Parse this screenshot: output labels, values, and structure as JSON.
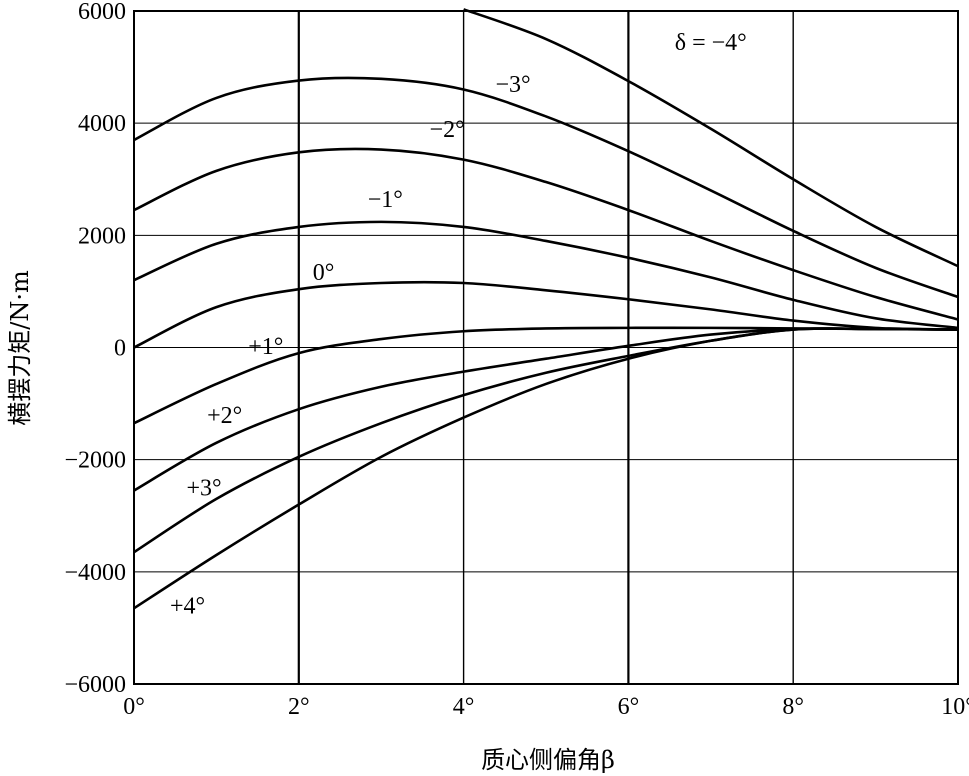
{
  "chart_data": {
    "type": "line",
    "title": "",
    "xlabel": "质心侧偏角β",
    "ylabel": "横摆力矩/N·m",
    "xlim": [
      0,
      10
    ],
    "ylim": [
      -6000,
      6000
    ],
    "x_ticks": [
      0,
      2,
      4,
      6,
      8,
      10
    ],
    "x_tick_labels": [
      "0°",
      "2°",
      "4°",
      "6°",
      "8°",
      "10°"
    ],
    "y_ticks": [
      6000,
      4000,
      2000,
      0,
      -2000,
      -4000,
      -6000
    ],
    "y_tick_labels": [
      "6000",
      "4000",
      "2000",
      "0",
      "−2000",
      "−4000",
      "−6000"
    ],
    "grid": true,
    "x": [
      0,
      1,
      2,
      3,
      4,
      5,
      6,
      7,
      8,
      9,
      10
    ],
    "series": [
      {
        "name": "δ = −4°",
        "values": [
          null,
          null,
          null,
          null,
          6030,
          5500,
          4750,
          3900,
          3000,
          2150,
          1450
        ],
        "label_x": 7.0,
        "label_y": 5450
      },
      {
        "name": "−3°",
        "values": [
          3700,
          4450,
          4760,
          4790,
          4600,
          4120,
          3500,
          2800,
          2080,
          1420,
          900
        ],
        "label_x": 4.6,
        "label_y": 4700
      },
      {
        "name": "−2°",
        "values": [
          2450,
          3150,
          3480,
          3530,
          3350,
          2950,
          2450,
          1900,
          1380,
          900,
          500
        ],
        "label_x": 3.8,
        "label_y": 3900
      },
      {
        "name": "−1°",
        "values": [
          1200,
          1850,
          2150,
          2240,
          2150,
          1900,
          1600,
          1250,
          850,
          520,
          350
        ],
        "label_x": 3.05,
        "label_y": 2650
      },
      {
        "name": "0°",
        "values": [
          0,
          720,
          1040,
          1150,
          1150,
          1020,
          860,
          680,
          480,
          350,
          320
        ],
        "label_x": 2.3,
        "label_y": 1350
      },
      {
        "name": "+1°",
        "values": [
          -1350,
          -650,
          -100,
          150,
          290,
          340,
          350,
          350,
          340,
          330,
          320
        ],
        "label_x": 1.6,
        "label_y": 30
      },
      {
        "name": "+2°",
        "values": [
          -2550,
          -1700,
          -1100,
          -700,
          -430,
          -200,
          30,
          230,
          330,
          330,
          320
        ],
        "label_x": 1.1,
        "label_y": -1200
      },
      {
        "name": "+3°",
        "values": [
          -3650,
          -2700,
          -1950,
          -1350,
          -850,
          -450,
          -150,
          120,
          320,
          330,
          320
        ],
        "label_x": 0.85,
        "label_y": -2500
      },
      {
        "name": "+4°",
        "values": [
          -4650,
          -3700,
          -2800,
          -1950,
          -1250,
          -650,
          -200,
          120,
          320,
          330,
          320
        ],
        "label_x": 0.65,
        "label_y": -4600
      }
    ]
  }
}
